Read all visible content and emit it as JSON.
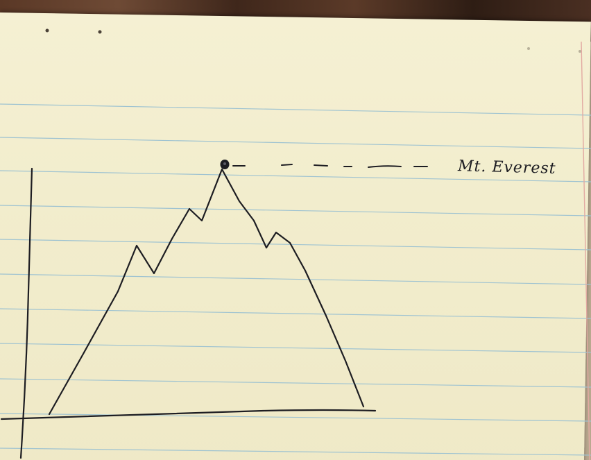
{
  "annotation": {
    "label": "Mt. Everest"
  },
  "colors": {
    "paper": "#f2edcd",
    "ruled_line": "#8fb7c9",
    "margin_line": "#e4a7a0",
    "ink": "#1d1d22",
    "wood": "#5a3826"
  }
}
